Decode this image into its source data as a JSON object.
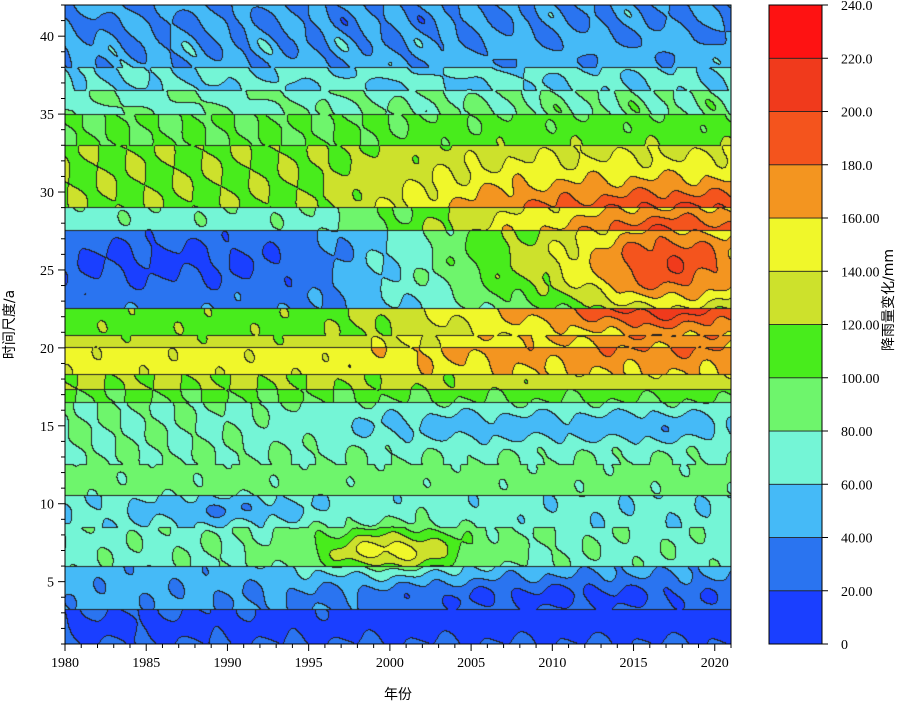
{
  "chart_data": {
    "type": "heatmap",
    "title": "",
    "xlabel": "年份",
    "ylabel": "时间尺度/a",
    "colorbar_label": "降雨量变化/mm",
    "xlim": [
      1980,
      2021
    ],
    "ylim": [
      1,
      42
    ],
    "x_ticks": [
      1980,
      1985,
      1990,
      1995,
      2000,
      2005,
      2010,
      2015,
      2020
    ],
    "y_ticks": [
      5,
      10,
      15,
      20,
      25,
      30,
      35,
      40
    ],
    "colorbar_range": [
      0,
      240
    ],
    "colorbar_ticks": [
      "0",
      "20.00",
      "40.00",
      "60.00",
      "80.00",
      "100.00",
      "120.00",
      "140.00",
      "160.00",
      "180.0",
      "200.0",
      "220.0",
      "240.0"
    ],
    "levels": [
      0,
      20,
      40,
      60,
      80,
      100,
      120,
      140,
      160,
      180,
      200,
      220,
      240
    ],
    "level_colors": [
      "#1a3fff",
      "#2a74f0",
      "#45baf7",
      "#74f5d6",
      "#6ef56c",
      "#48ec1c",
      "#cde12c",
      "#f0f72a",
      "#f39520",
      "#f4541d",
      "#f03a1c",
      "#fe1212"
    ],
    "contour_color": "#222222",
    "grid": false
  }
}
